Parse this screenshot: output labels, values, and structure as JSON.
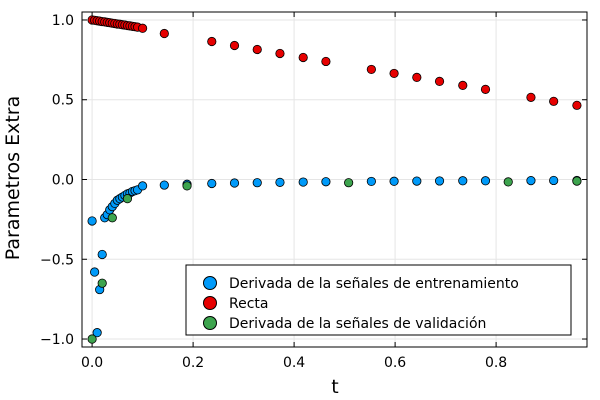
{
  "chart_data": {
    "type": "scatter",
    "xlabel": "t",
    "ylabel": "Parametros Extra",
    "xlim": [
      -0.02,
      0.98
    ],
    "ylim": [
      -1.05,
      1.05
    ],
    "xticks": [
      0.0,
      0.2,
      0.4,
      0.6,
      0.8
    ],
    "xtick_labels": [
      "0.0",
      "0.2",
      "0.4",
      "0.6",
      "0.8"
    ],
    "yticks": [
      -1.0,
      -0.5,
      0.0,
      0.5,
      1.0
    ],
    "ytick_labels": [
      "−1.0",
      "−0.5",
      "0.0",
      "0.5",
      "1.0"
    ],
    "grid": true,
    "legend_position": "bottom-right",
    "series": [
      {
        "name": "Derivada de la señales de entrenamiento",
        "color": "#009AF9",
        "x": [
          0.0,
          0.005,
          0.01,
          0.015,
          0.02,
          0.025,
          0.03,
          0.035,
          0.04,
          0.045,
          0.05,
          0.055,
          0.06,
          0.065,
          0.07,
          0.075,
          0.08,
          0.085,
          0.09,
          0.1,
          0.143,
          0.188,
          0.237,
          0.282,
          0.327,
          0.372,
          0.418,
          0.463,
          0.553,
          0.598,
          0.643,
          0.688,
          0.734,
          0.779,
          0.869,
          0.914,
          0.96
        ],
        "y": [
          -0.26,
          -0.58,
          -0.96,
          -0.69,
          -0.47,
          -0.24,
          -0.22,
          -0.19,
          -0.17,
          -0.15,
          -0.13,
          -0.12,
          -0.11,
          -0.1,
          -0.09,
          -0.085,
          -0.075,
          -0.07,
          -0.065,
          -0.04,
          -0.035,
          -0.03,
          -0.025,
          -0.022,
          -0.02,
          -0.018,
          -0.016,
          -0.014,
          -0.012,
          -0.011,
          -0.01,
          -0.009,
          -0.008,
          -0.008,
          -0.007,
          -0.006,
          -0.006
        ]
      },
      {
        "name": "Recta",
        "color": "#E60000",
        "x": [
          0.0,
          0.005,
          0.01,
          0.015,
          0.02,
          0.025,
          0.03,
          0.035,
          0.04,
          0.045,
          0.05,
          0.055,
          0.06,
          0.065,
          0.07,
          0.075,
          0.08,
          0.085,
          0.09,
          0.1,
          0.143,
          0.237,
          0.282,
          0.327,
          0.372,
          0.418,
          0.463,
          0.553,
          0.598,
          0.643,
          0.688,
          0.734,
          0.779,
          0.869,
          0.914,
          0.96
        ],
        "y": [
          1.0,
          0.998,
          0.995,
          0.993,
          0.99,
          0.988,
          0.985,
          0.983,
          0.98,
          0.978,
          0.975,
          0.973,
          0.97,
          0.968,
          0.965,
          0.963,
          0.96,
          0.958,
          0.955,
          0.948,
          0.915,
          0.865,
          0.84,
          0.815,
          0.79,
          0.765,
          0.74,
          0.69,
          0.665,
          0.64,
          0.615,
          0.59,
          0.565,
          0.515,
          0.49,
          0.465
        ]
      },
      {
        "name": "Derivada de la señales de validación",
        "color": "#3DA44E",
        "x": [
          0.0,
          0.02,
          0.04,
          0.07,
          0.188,
          0.508,
          0.824,
          0.96
        ],
        "y": [
          -1.0,
          -0.65,
          -0.24,
          -0.12,
          -0.04,
          -0.02,
          -0.015,
          -0.01
        ]
      }
    ]
  }
}
